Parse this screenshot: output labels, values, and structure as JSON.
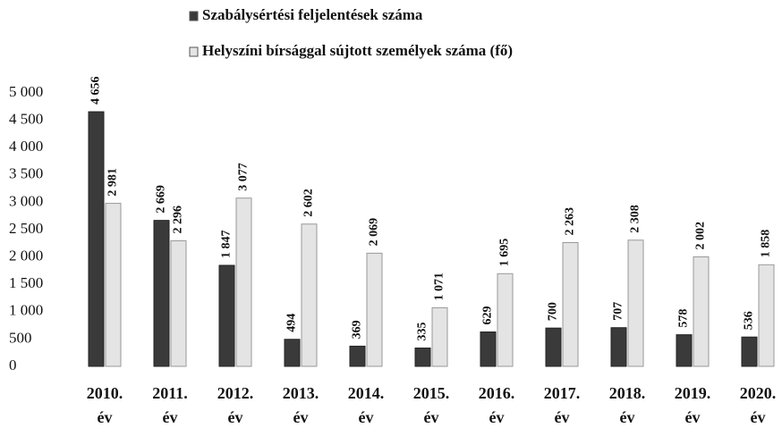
{
  "chart_data": {
    "type": "bar",
    "categories": [
      "2010. év",
      "2011. év",
      "2012. év",
      "2013. év",
      "2014. év",
      "2015. év",
      "2016. év",
      "2017. év",
      "2018. év",
      "2019. év",
      "2020. év"
    ],
    "series": [
      {
        "name": "Szabálysértési feljelentések száma",
        "color": "#3a3a3a",
        "values": [
          4656,
          2669,
          1847,
          494,
          369,
          335,
          629,
          700,
          707,
          578,
          536
        ],
        "value_labels": [
          "4 656",
          "2 669",
          "1 847",
          "494",
          "369",
          "335",
          "629",
          "700",
          "707",
          "578",
          "536"
        ]
      },
      {
        "name": "Helyszíni bírsággal sújtott személyek száma (fő)",
        "color": "#e4e4e4",
        "values": [
          2981,
          2296,
          3077,
          2602,
          2069,
          1071,
          1695,
          2263,
          2308,
          2002,
          1858
        ],
        "value_labels": [
          "2 981",
          "2 296",
          "3 077",
          "2 602",
          "2 069",
          "1 071",
          "1 695",
          "2 263",
          "2 308",
          "2 002",
          "1 858"
        ]
      }
    ],
    "ylim": [
      0,
      5000
    ],
    "yticks": [
      0,
      500,
      {
        "value": 1000,
        "label": "1 000"
      },
      {
        "value": 1500,
        "label": "1 500"
      },
      {
        "value": 2000,
        "label": "2 000"
      },
      {
        "value": 2500,
        "label": "2 500"
      },
      {
        "value": 3000,
        "label": "3 000"
      },
      {
        "value": 3500,
        "label": "3 500"
      },
      {
        "value": 4000,
        "label": "4 000"
      },
      {
        "value": 4500,
        "label": "4 500"
      },
      {
        "value": 5000,
        "label": "5 000"
      }
    ],
    "grid": false
  }
}
